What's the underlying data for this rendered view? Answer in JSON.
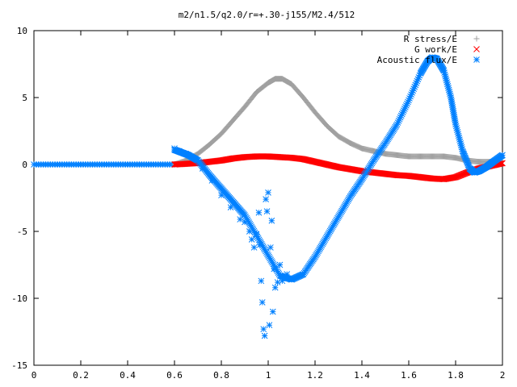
{
  "chart_data": {
    "type": "scatter",
    "title": "m2/n1.5/q2.0/r=+.30-j155/M2.4/512",
    "xlabel": "",
    "ylabel": "",
    "xlim": [
      0,
      2
    ],
    "ylim": [
      -15,
      10
    ],
    "x_ticks": [
      "0",
      "0.2",
      "0.4",
      "0.6",
      "0.8",
      "1",
      "1.2",
      "1.4",
      "1.6",
      "1.8",
      "2"
    ],
    "y_ticks": [
      "10",
      "5",
      "0",
      "-5",
      "-10",
      "-15"
    ],
    "grid": false,
    "legend_position": "top-right",
    "series": [
      {
        "name": "R stress/E",
        "marker": "+",
        "color": "#a0a0a0",
        "x": [
          0.6,
          0.65,
          0.7,
          0.75,
          0.8,
          0.85,
          0.9,
          0.95,
          1.0,
          1.03,
          1.06,
          1.1,
          1.15,
          1.2,
          1.25,
          1.3,
          1.35,
          1.4,
          1.45,
          1.5,
          1.55,
          1.6,
          1.65,
          1.7,
          1.75,
          1.8,
          1.85,
          1.9,
          1.95,
          2.0
        ],
        "y": [
          0.0,
          0.3,
          0.8,
          1.5,
          2.3,
          3.3,
          4.3,
          5.4,
          6.1,
          6.4,
          6.4,
          6.0,
          5.0,
          3.9,
          2.9,
          2.1,
          1.6,
          1.2,
          1.0,
          0.8,
          0.7,
          0.6,
          0.6,
          0.6,
          0.6,
          0.5,
          0.3,
          0.2,
          0.2,
          0.5
        ]
      },
      {
        "name": "G work/E",
        "marker": "x",
        "color": "#ff0000",
        "x": [
          0.6,
          0.65,
          0.7,
          0.75,
          0.8,
          0.85,
          0.9,
          0.95,
          1.0,
          1.05,
          1.1,
          1.15,
          1.2,
          1.25,
          1.3,
          1.35,
          1.4,
          1.45,
          1.5,
          1.55,
          1.6,
          1.65,
          1.7,
          1.75,
          1.8,
          1.85,
          1.9,
          1.95,
          2.0
        ],
        "y": [
          0.0,
          0.05,
          0.1,
          0.2,
          0.3,
          0.45,
          0.55,
          0.6,
          0.6,
          0.55,
          0.5,
          0.4,
          0.2,
          0.0,
          -0.2,
          -0.35,
          -0.5,
          -0.6,
          -0.7,
          -0.8,
          -0.85,
          -0.95,
          -1.05,
          -1.1,
          -0.95,
          -0.6,
          -0.3,
          -0.1,
          0.1
        ]
      },
      {
        "name": "Acoustic flux/E",
        "marker": "*",
        "color": "#0080ff",
        "x": [
          0.6,
          0.63,
          0.66,
          0.7,
          0.75,
          0.8,
          0.85,
          0.9,
          0.95,
          1.0,
          1.05,
          1.1,
          1.15,
          1.2,
          1.25,
          1.3,
          1.35,
          1.4,
          1.45,
          1.5,
          1.55,
          1.6,
          1.65,
          1.68,
          1.7,
          1.72,
          1.75,
          1.78,
          1.8,
          1.83,
          1.86,
          1.88,
          1.9,
          1.93,
          1.96,
          2.0
        ],
        "y": [
          1.1,
          0.9,
          0.7,
          0.3,
          -0.8,
          -1.8,
          -2.8,
          -3.8,
          -5.3,
          -6.8,
          -8.3,
          -8.6,
          -8.2,
          -6.9,
          -5.4,
          -3.9,
          -2.4,
          -1.1,
          0.3,
          1.6,
          3.0,
          4.8,
          6.8,
          7.7,
          8.0,
          7.9,
          7.0,
          5.0,
          3.0,
          1.0,
          -0.3,
          -0.6,
          -0.5,
          -0.2,
          0.2,
          0.7
        ]
      },
      {
        "name": "",
        "marker": "*",
        "color": "#0080ff",
        "x": [
          0.6,
          0.62,
          0.65,
          0.68,
          0.72,
          0.76,
          0.8,
          0.84,
          0.88,
          0.9,
          0.92,
          0.93,
          0.94,
          0.95,
          0.96,
          0.965,
          0.97,
          0.975,
          0.98,
          0.985,
          0.99,
          0.995,
          1.0,
          1.005,
          1.01,
          1.015,
          1.02,
          1.025,
          1.03,
          1.04,
          1.05,
          1.06,
          1.08,
          1.1
        ],
        "y": [
          1.2,
          1.0,
          0.8,
          0.5,
          -0.3,
          -1.2,
          -2.3,
          -3.2,
          -4.1,
          -4.3,
          -5.0,
          -5.6,
          -6.2,
          -5.2,
          -3.6,
          -6.0,
          -8.7,
          -10.3,
          -12.3,
          -12.8,
          -2.6,
          -3.5,
          -2.1,
          -12.0,
          -6.2,
          -4.2,
          -11.0,
          -7.8,
          -9.2,
          -8.8,
          -7.5,
          -8.7,
          -8.2,
          -8.6
        ]
      }
    ]
  }
}
